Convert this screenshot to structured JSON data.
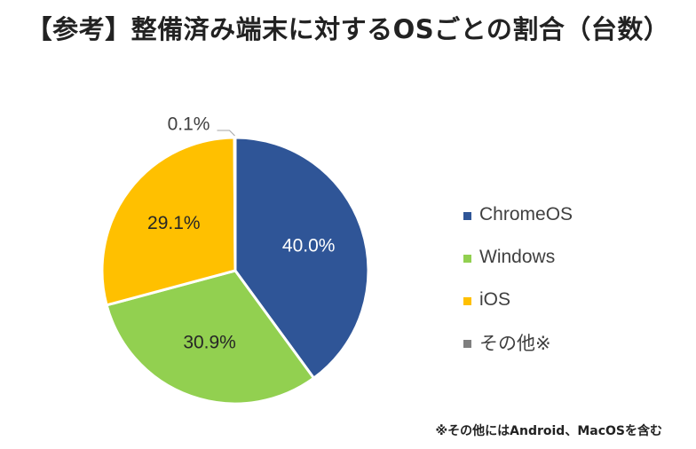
{
  "chart_data": {
    "type": "pie",
    "title": "【参考】整備済み端末に対するOSごとの割合（台数）",
    "series": [
      {
        "name": "ChromeOS",
        "value": 40.0,
        "label": "40.0%",
        "color": "#2f5597"
      },
      {
        "name": "Windows",
        "value": 30.9,
        "label": "30.9%",
        "color": "#92d050"
      },
      {
        "name": "iOS",
        "value": 29.1,
        "label": "29.1%",
        "color": "#ffc000"
      },
      {
        "name": "その他※",
        "value": 0.1,
        "label": "0.1%",
        "color": "#7f7f7f"
      }
    ],
    "legend_position": "right",
    "footnote": "※その他にはAndroid、MacOSを含む"
  }
}
